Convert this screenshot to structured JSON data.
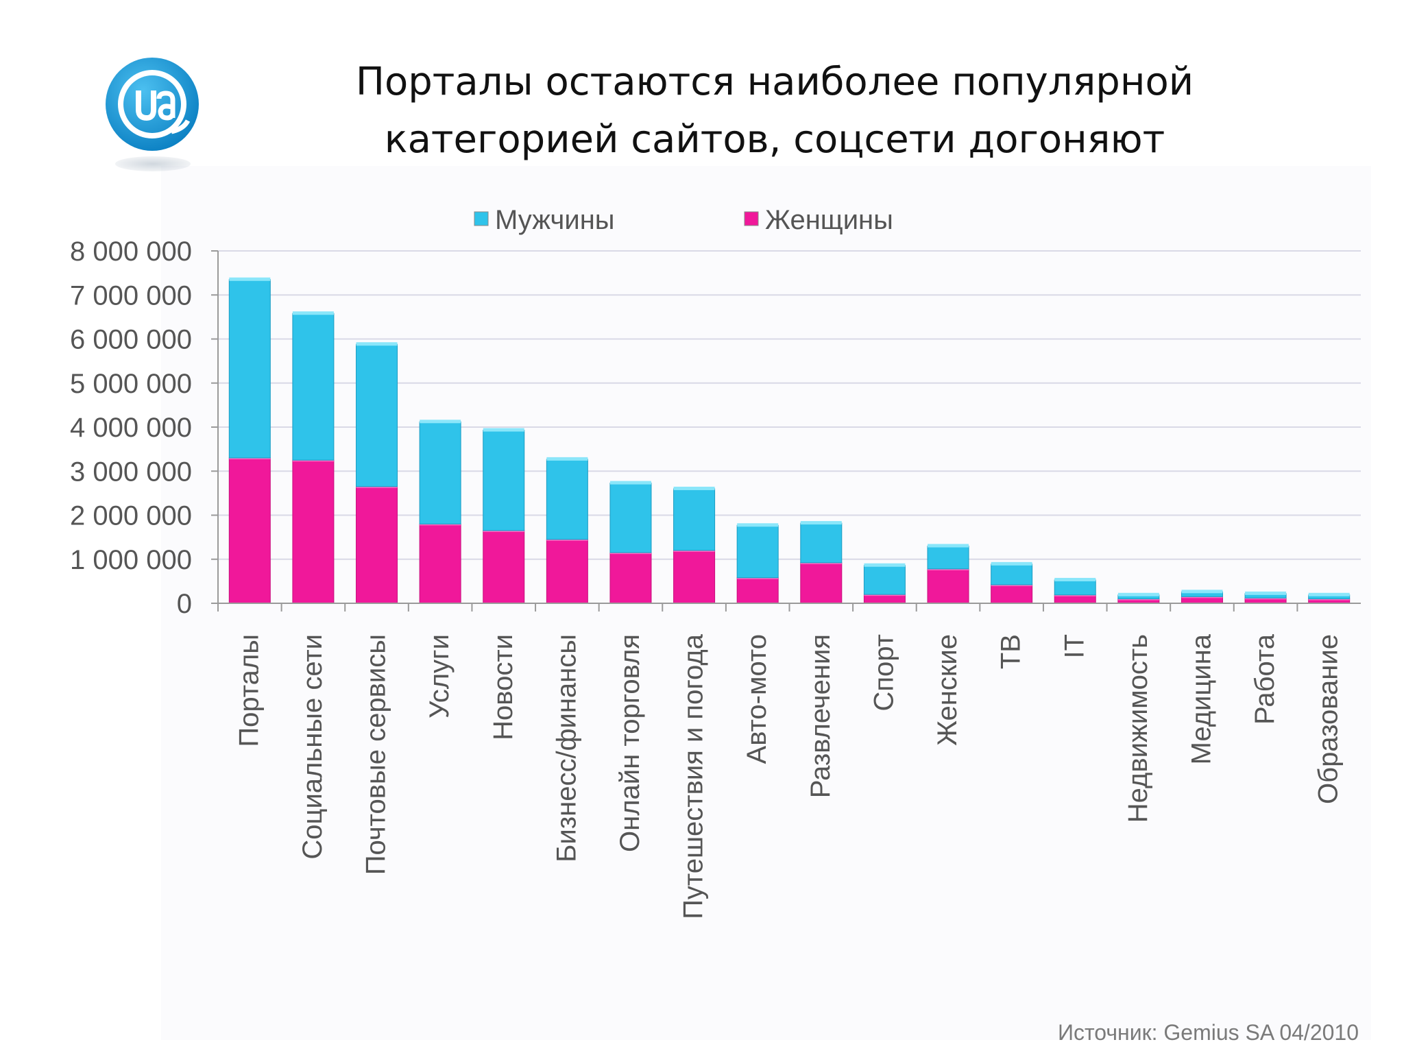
{
  "title": {
    "line1": "Порталы остаются наиболее популярной",
    "line2": "категорией сайтов, соцсети догоняют"
  },
  "logo": {
    "icon": "ua-at-logo-icon",
    "color": "#1a9ad6"
  },
  "source": "Источник: Gemius SA 04/2010",
  "colors": {
    "men": "#2fc3ea",
    "women": "#f0189a",
    "grid": "#d9d9e6",
    "axis_text": "#555555"
  },
  "chart_data": {
    "type": "bar",
    "stacked": true,
    "categories": [
      "Порталы",
      "Социальные сети",
      "Почтовые сервисы",
      "Услуги",
      "Новости",
      "Бизнесс/финансы",
      "Онлайн торговля",
      "Путешествия и погода",
      "Авто-мото",
      "Развлечения",
      "Спорт",
      "Женские",
      "ТВ",
      "IT",
      "Недвижимость",
      "Медицина",
      "Работа",
      "Образование"
    ],
    "series": [
      {
        "name": "Женщины",
        "values": [
          3300000,
          3250000,
          2650000,
          1800000,
          1650000,
          1450000,
          1150000,
          1200000,
          580000,
          920000,
          200000,
          780000,
          420000,
          190000,
          100000,
          150000,
          120000,
          100000
        ]
      },
      {
        "name": "Мужчины",
        "values": [
          4050000,
          3330000,
          3230000,
          2320000,
          2280000,
          1820000,
          1580000,
          1400000,
          1190000,
          900000,
          660000,
          520000,
          470000,
          340000,
          90000,
          110000,
          100000,
          90000
        ]
      }
    ],
    "legend_order": [
      "Мужчины",
      "Женщины"
    ],
    "legend_position": "top",
    "ylim": [
      0,
      8000000
    ],
    "yticks": [
      0,
      1000000,
      2000000,
      3000000,
      4000000,
      5000000,
      6000000,
      7000000,
      8000000
    ],
    "ytick_labels": [
      "0",
      "1 000 000",
      "2 000 000",
      "3 000 000",
      "4 000 000",
      "5 000 000",
      "6 000 000",
      "7 000 000",
      "8 000 000"
    ],
    "grid": true
  }
}
